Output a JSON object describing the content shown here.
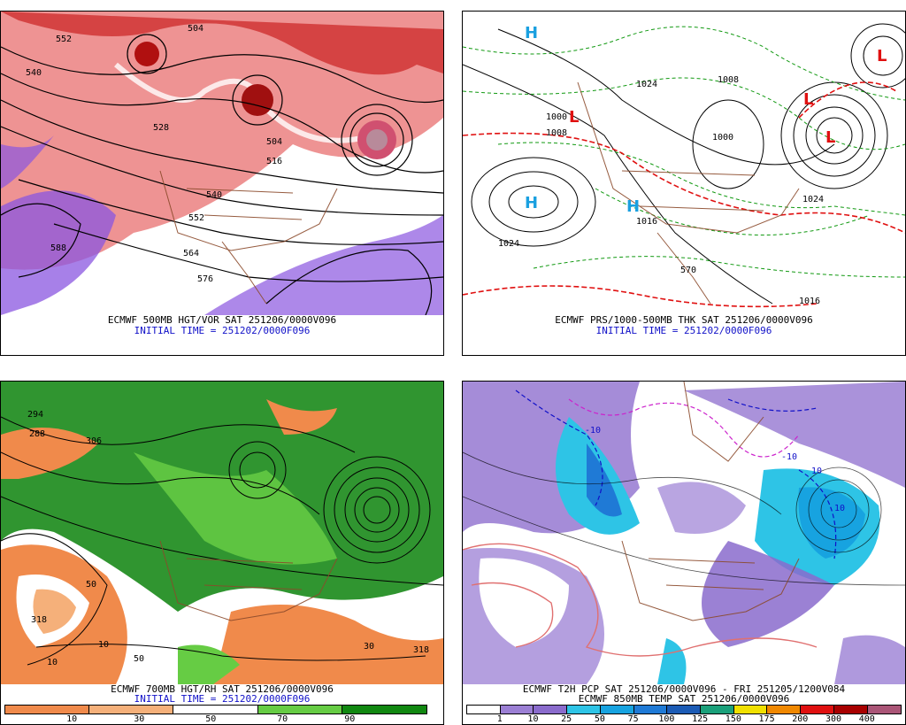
{
  "panels": {
    "top_left": {
      "caption1": "ECMWF 500MB HGT/VOR SAT 251206/0000V096",
      "caption2": "INITIAL TIME = 251202/0000F096",
      "contour_labels": [
        "552",
        "540",
        "528",
        "504",
        "540",
        "552",
        "564",
        "576",
        "588",
        "504",
        "516"
      ]
    },
    "top_right": {
      "caption1": "ECMWF PRS/1000-500MB THK SAT 251206/0000V096",
      "caption2": "INITIAL TIME = 251202/0000F096",
      "contour_labels": [
        "1000",
        "1008",
        "1024",
        "1016",
        "1024",
        "1008",
        "1000",
        "1016",
        "1024",
        "570"
      ],
      "high_low": [
        "H",
        "H",
        "L",
        "L",
        "H",
        "L",
        "L"
      ]
    },
    "bottom_left": {
      "caption1": "ECMWF 700MB HGT/RH SAT 251206/0000V096",
      "caption2": "INITIAL TIME = 251202/0000F096",
      "contour_labels": [
        "294",
        "288",
        "306",
        "50",
        "10",
        "318",
        "50",
        "10",
        "30",
        "318"
      ],
      "colorbar_ticks": [
        "10",
        "30",
        "50",
        "70",
        "90"
      ],
      "colorbar_colors": [
        "#f08a4b",
        "#f5b07a",
        "#ffffff",
        "#66cc44",
        "#118811"
      ]
    },
    "bottom_right": {
      "caption1": "ECMWF T2H PCP SAT 251206/0000V096 - FRI 251205/1200V084",
      "caption2": "ECMWF 850MB TEMP SAT 251206/0000V096",
      "contour_labels": [
        "-10",
        "-10",
        "10",
        "10"
      ],
      "colorbar_ticks": [
        "1",
        "10",
        "25",
        "50",
        "75",
        "100",
        "125",
        "150",
        "175",
        "200",
        "300",
        "400"
      ],
      "colorbar_colors": [
        "#ffffff",
        "#9b7fd4",
        "#8a6bcc",
        "#2ec4e6",
        "#17a3e0",
        "#1f7ad6",
        "#1b5bb5",
        "#1aa07a",
        "#f0e000",
        "#f08800",
        "#e01010",
        "#a80000",
        "#aa5577"
      ]
    }
  },
  "colors": {
    "vorticity_red": "#d42020",
    "vorticity_purple": "#8a55e0",
    "thickness_red": "#e01010",
    "thickness_green": "#119911",
    "pressure_high": "#1aa0e0",
    "pressure_low": "#e01010",
    "rh_green": "#1a8a1a",
    "rh_orange": "#f08a4b",
    "border_brown": "#8b4a2b"
  }
}
